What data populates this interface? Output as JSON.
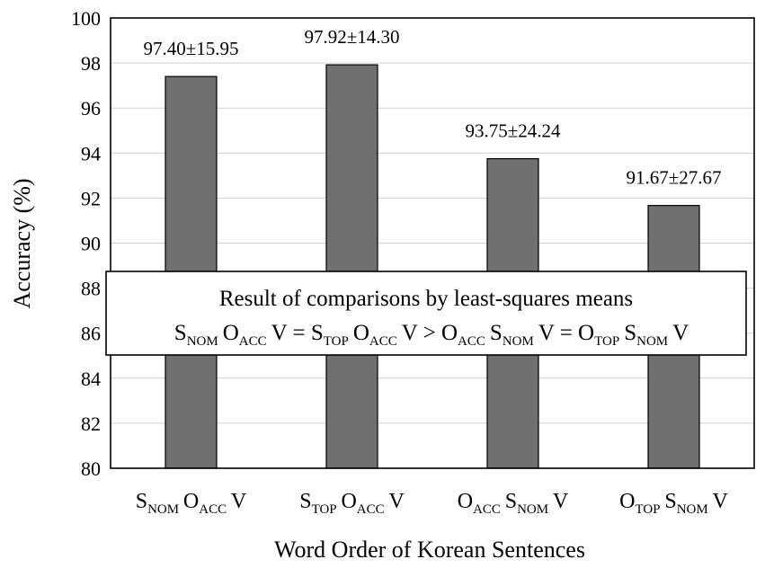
{
  "chart_data": {
    "type": "bar",
    "title": "",
    "xlabel": "Word Order of Korean Sentences",
    "ylabel": "Accuracy (%)",
    "ylim": [
      80,
      100
    ],
    "yticks": [
      "80",
      "82",
      "84",
      "86",
      "88",
      "90",
      "92",
      "94",
      "96",
      "98",
      "100"
    ],
    "grid": true,
    "categories": [
      {
        "parts": [
          [
            "S",
            "NOM"
          ],
          [
            "O",
            "ACC"
          ],
          [
            "V",
            ""
          ]
        ]
      },
      {
        "parts": [
          [
            "S",
            "TOP"
          ],
          [
            "O",
            "ACC"
          ],
          [
            "V",
            ""
          ]
        ]
      },
      {
        "parts": [
          [
            "O",
            "ACC"
          ],
          [
            "S",
            "NOM"
          ],
          [
            "V",
            ""
          ]
        ]
      },
      {
        "parts": [
          [
            "O",
            "TOP"
          ],
          [
            "S",
            "NOM"
          ],
          [
            "V",
            ""
          ]
        ]
      }
    ],
    "values": [
      97.4,
      97.92,
      93.75,
      91.67
    ],
    "data_labels": [
      "97.40±15.95",
      "97.92±14.30",
      "93.75±24.24",
      "91.67±27.67"
    ],
    "bar_color": "#707070",
    "annotation": {
      "line1": "Result of comparisons by least-squares means",
      "line2_parts": [
        [
          "S",
          "NOM"
        ],
        [
          "O",
          "ACC"
        ],
        [
          "V = ",
          ""
        ],
        [
          "S",
          "TOP"
        ],
        [
          "O",
          "ACC"
        ],
        [
          "V > ",
          ""
        ],
        [
          "O",
          "ACC"
        ],
        [
          "S",
          "NOM"
        ],
        [
          "V = ",
          ""
        ],
        [
          "O",
          "TOP"
        ],
        [
          "S",
          "NOM"
        ],
        [
          "V",
          ""
        ]
      ]
    }
  }
}
